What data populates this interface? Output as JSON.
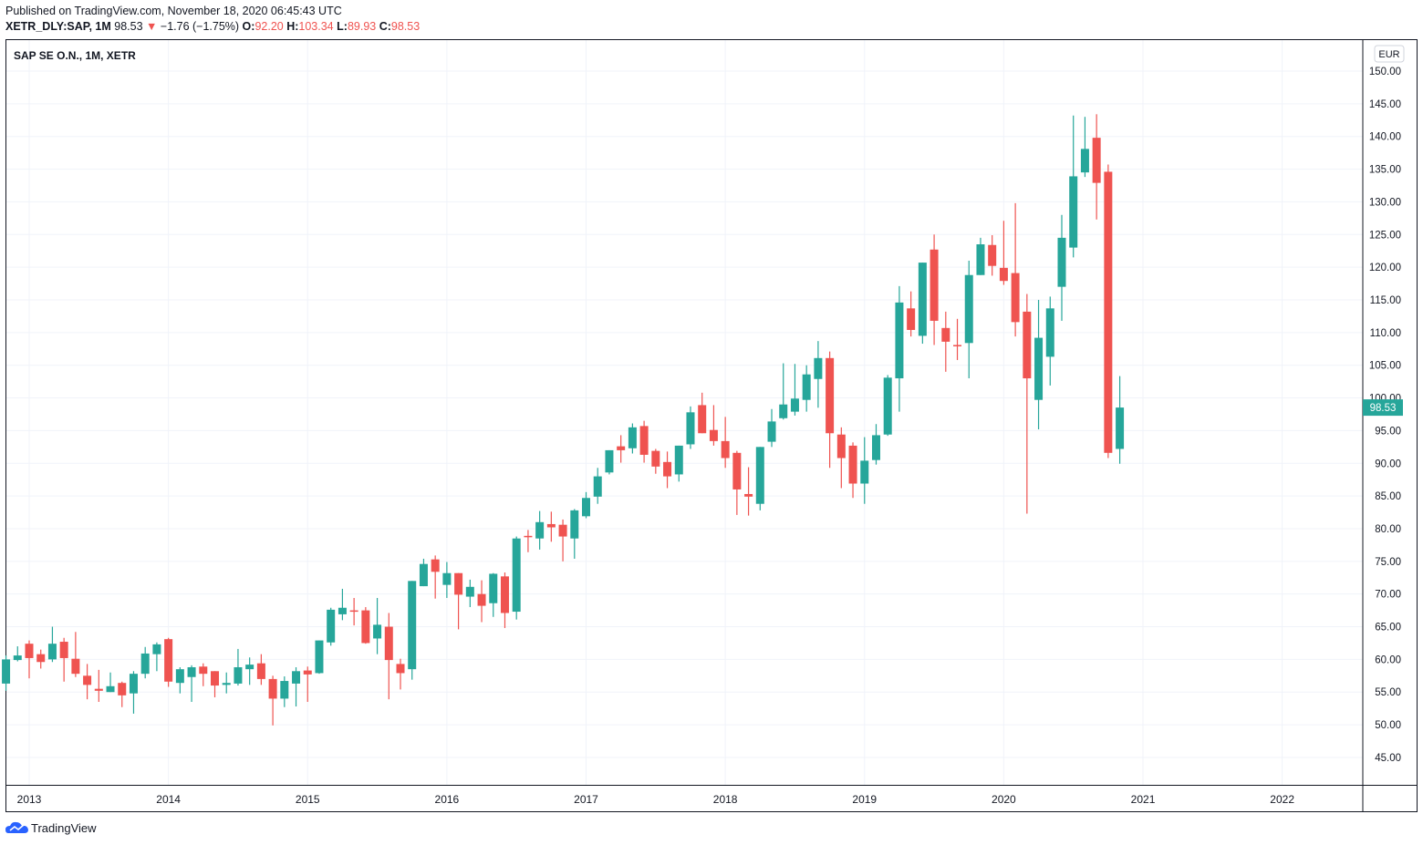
{
  "header": {
    "published": "Published on TradingView.com, November 18, 2020 06:45:43 UTC",
    "symbol": "XETR_DLY:SAP, 1M",
    "last": "98.53",
    "change": "−1.76 (−1.75%)",
    "o_label": "O:",
    "o": "92.20",
    "h_label": "H:",
    "h": "103.34",
    "l_label": "L:",
    "l": "89.93",
    "c_label": "C:",
    "c": "98.53"
  },
  "footer": {
    "brand": "TradingView"
  },
  "colors": {
    "up": "#26a69a",
    "down": "#ef5350",
    "grid": "#f0f3fa",
    "text": "#131722"
  },
  "chart_data": {
    "type": "candlestick",
    "title": "SAP SE O.N., 1M, XETR",
    "currency": "EUR",
    "last_price_label": "98.53",
    "ylim": [
      42,
      155
    ],
    "yticks": [
      "45.00",
      "50.00",
      "55.00",
      "60.00",
      "65.00",
      "70.00",
      "75.00",
      "80.00",
      "85.00",
      "90.00",
      "95.00",
      "100.00",
      "105.00",
      "110.00",
      "115.00",
      "120.00",
      "125.00",
      "130.00",
      "135.00",
      "140.00",
      "145.00",
      "150.00"
    ],
    "xticks": [
      "2013",
      "2014",
      "2015",
      "2016",
      "2017",
      "2018",
      "2019",
      "2020",
      "2021",
      "2022"
    ],
    "grid": true,
    "columns": [
      "month",
      "open",
      "high",
      "low",
      "close"
    ],
    "candles": [
      [
        "2012-11",
        56.3,
        60.6,
        55.2,
        60.0
      ],
      [
        "2012-12",
        59.9,
        62.0,
        59.7,
        60.6
      ],
      [
        "2013-01",
        62.4,
        62.9,
        57.1,
        60.2
      ],
      [
        "2013-02",
        60.8,
        61.5,
        58.6,
        59.6
      ],
      [
        "2013-03",
        60.0,
        65.0,
        59.6,
        62.4
      ],
      [
        "2013-04",
        62.7,
        63.3,
        56.6,
        60.2
      ],
      [
        "2013-05",
        60.1,
        64.2,
        57.3,
        57.8
      ],
      [
        "2013-06",
        57.5,
        59.3,
        53.9,
        56.1
      ],
      [
        "2013-07",
        55.5,
        58.4,
        53.5,
        55.2
      ],
      [
        "2013-08",
        55.0,
        58.0,
        55.0,
        55.9
      ],
      [
        "2013-09",
        56.4,
        56.6,
        52.7,
        54.5
      ],
      [
        "2013-10",
        54.8,
        58.2,
        51.7,
        57.8
      ],
      [
        "2013-11",
        57.8,
        61.9,
        57.1,
        60.9
      ],
      [
        "2013-12",
        60.8,
        62.6,
        58.2,
        62.3
      ],
      [
        "2014-01",
        63.1,
        63.3,
        55.8,
        56.6
      ],
      [
        "2014-02",
        56.4,
        58.8,
        54.8,
        58.5
      ],
      [
        "2014-03",
        57.3,
        59.1,
        53.5,
        58.8
      ],
      [
        "2014-04",
        58.9,
        59.4,
        55.9,
        57.8
      ],
      [
        "2014-05",
        58.2,
        58.2,
        54.2,
        56.0
      ],
      [
        "2014-06",
        56.1,
        58.0,
        54.8,
        56.4
      ],
      [
        "2014-07",
        56.3,
        61.6,
        56.0,
        58.8
      ],
      [
        "2014-08",
        58.5,
        60.3,
        56.1,
        59.2
      ],
      [
        "2014-09",
        59.4,
        60.8,
        56.1,
        57.0
      ],
      [
        "2014-10",
        57.0,
        57.5,
        49.9,
        54.0
      ],
      [
        "2014-11",
        54.0,
        57.4,
        52.7,
        56.7
      ],
      [
        "2014-12",
        56.3,
        58.8,
        52.8,
        58.2
      ],
      [
        "2015-01",
        58.3,
        58.9,
        53.5,
        57.7
      ],
      [
        "2015-02",
        57.9,
        62.9,
        57.8,
        62.9
      ],
      [
        "2015-03",
        62.6,
        67.9,
        62.1,
        67.6
      ],
      [
        "2015-04",
        66.9,
        70.8,
        66.0,
        67.9
      ],
      [
        "2015-05",
        67.5,
        69.4,
        65.2,
        67.4
      ],
      [
        "2015-06",
        67.5,
        68.0,
        62.4,
        62.5
      ],
      [
        "2015-07",
        63.2,
        69.4,
        60.8,
        65.3
      ],
      [
        "2015-08",
        65.0,
        67.1,
        53.9,
        59.9
      ],
      [
        "2015-09",
        59.3,
        60.1,
        55.4,
        57.9
      ],
      [
        "2015-10",
        58.5,
        72.0,
        56.9,
        72.0
      ],
      [
        "2015-11",
        71.2,
        75.4,
        71.2,
        74.6
      ],
      [
        "2015-12",
        75.3,
        75.9,
        69.3,
        73.4
      ],
      [
        "2016-01",
        71.4,
        74.9,
        69.4,
        73.2
      ],
      [
        "2016-02",
        73.2,
        73.2,
        64.6,
        69.9
      ],
      [
        "2016-03",
        69.6,
        72.2,
        68.0,
        71.1
      ],
      [
        "2016-04",
        70.0,
        72.1,
        65.7,
        68.2
      ],
      [
        "2016-05",
        68.6,
        73.2,
        66.5,
        73.1
      ],
      [
        "2016-06",
        72.7,
        73.3,
        64.8,
        67.1
      ],
      [
        "2016-07",
        67.3,
        78.8,
        66.1,
        78.5
      ],
      [
        "2016-08",
        78.9,
        79.8,
        76.4,
        78.7
      ],
      [
        "2016-09",
        78.5,
        82.7,
        76.8,
        81.0
      ],
      [
        "2016-10",
        80.7,
        82.6,
        78.0,
        80.2
      ],
      [
        "2016-11",
        80.6,
        81.4,
        75.0,
        78.8
      ],
      [
        "2016-12",
        78.5,
        83.0,
        75.4,
        82.8
      ],
      [
        "2017-01",
        81.9,
        85.6,
        81.6,
        84.7
      ],
      [
        "2017-02",
        84.9,
        89.3,
        83.8,
        88.0
      ],
      [
        "2017-03",
        88.6,
        92.0,
        88.3,
        92.0
      ],
      [
        "2017-04",
        92.6,
        94.3,
        90.1,
        92.0
      ],
      [
        "2017-05",
        92.3,
        96.1,
        91.5,
        95.5
      ],
      [
        "2017-06",
        95.7,
        96.5,
        90.1,
        91.3
      ],
      [
        "2017-07",
        91.9,
        92.2,
        88.4,
        89.5
      ],
      [
        "2017-08",
        90.2,
        91.8,
        86.2,
        88.0
      ],
      [
        "2017-09",
        88.3,
        92.7,
        87.2,
        92.7
      ],
      [
        "2017-10",
        92.9,
        98.7,
        92.2,
        97.8
      ],
      [
        "2017-11",
        98.9,
        100.8,
        94.6,
        94.6
      ],
      [
        "2017-12",
        95.1,
        98.9,
        92.7,
        93.4
      ],
      [
        "2018-01",
        93.4,
        97.1,
        89.3,
        90.8
      ],
      [
        "2018-02",
        91.6,
        91.9,
        82.1,
        86.0
      ],
      [
        "2018-03",
        85.3,
        89.4,
        82.0,
        84.9
      ],
      [
        "2018-04",
        83.8,
        92.5,
        82.8,
        92.5
      ],
      [
        "2018-05",
        93.3,
        98.3,
        92.5,
        96.4
      ],
      [
        "2018-06",
        96.9,
        105.3,
        96.7,
        99.0
      ],
      [
        "2018-07",
        97.9,
        105.2,
        97.3,
        99.9
      ],
      [
        "2018-08",
        99.7,
        105.0,
        97.9,
        103.6
      ],
      [
        "2018-09",
        102.9,
        108.7,
        98.5,
        106.1
      ],
      [
        "2018-10",
        106.1,
        107.1,
        89.3,
        94.6
      ],
      [
        "2018-11",
        94.4,
        95.5,
        86.2,
        90.8
      ],
      [
        "2018-12",
        92.7,
        93.2,
        84.7,
        86.9
      ],
      [
        "2019-01",
        86.9,
        94.0,
        83.8,
        90.4
      ],
      [
        "2019-02",
        90.5,
        96.0,
        89.8,
        94.3
      ],
      [
        "2019-03",
        94.4,
        103.5,
        94.2,
        103.1
      ],
      [
        "2019-04",
        103.0,
        117.1,
        97.9,
        114.6
      ],
      [
        "2019-05",
        113.7,
        116.3,
        109.4,
        110.4
      ],
      [
        "2019-06",
        109.5,
        120.7,
        108.3,
        120.7
      ],
      [
        "2019-07",
        122.7,
        125.0,
        108.1,
        111.8
      ],
      [
        "2019-08",
        110.7,
        113.2,
        104.0,
        108.6
      ],
      [
        "2019-09",
        108.1,
        112.1,
        105.8,
        107.9
      ],
      [
        "2019-10",
        108.4,
        121.0,
        103.0,
        118.8
      ],
      [
        "2019-11",
        118.8,
        124.5,
        118.8,
        123.5
      ],
      [
        "2019-12",
        123.4,
        124.9,
        118.7,
        120.2
      ],
      [
        "2020-01",
        119.9,
        127.1,
        117.3,
        117.9
      ],
      [
        "2020-02",
        119.1,
        129.8,
        109.4,
        111.6
      ],
      [
        "2020-03",
        113.2,
        115.9,
        82.3,
        103.0
      ],
      [
        "2020-04",
        99.7,
        115.0,
        95.2,
        109.2
      ],
      [
        "2020-05",
        106.3,
        115.5,
        101.9,
        113.7
      ],
      [
        "2020-06",
        117.0,
        128.0,
        111.8,
        124.5
      ],
      [
        "2020-07",
        123.0,
        143.2,
        121.5,
        133.9
      ],
      [
        "2020-08",
        134.5,
        143.0,
        133.8,
        138.1
      ],
      [
        "2020-09",
        139.8,
        143.4,
        127.3,
        132.9
      ],
      [
        "2020-10",
        134.6,
        135.7,
        90.8,
        91.6
      ],
      [
        "2020-11",
        92.2,
        103.34,
        89.93,
        98.53
      ]
    ]
  }
}
